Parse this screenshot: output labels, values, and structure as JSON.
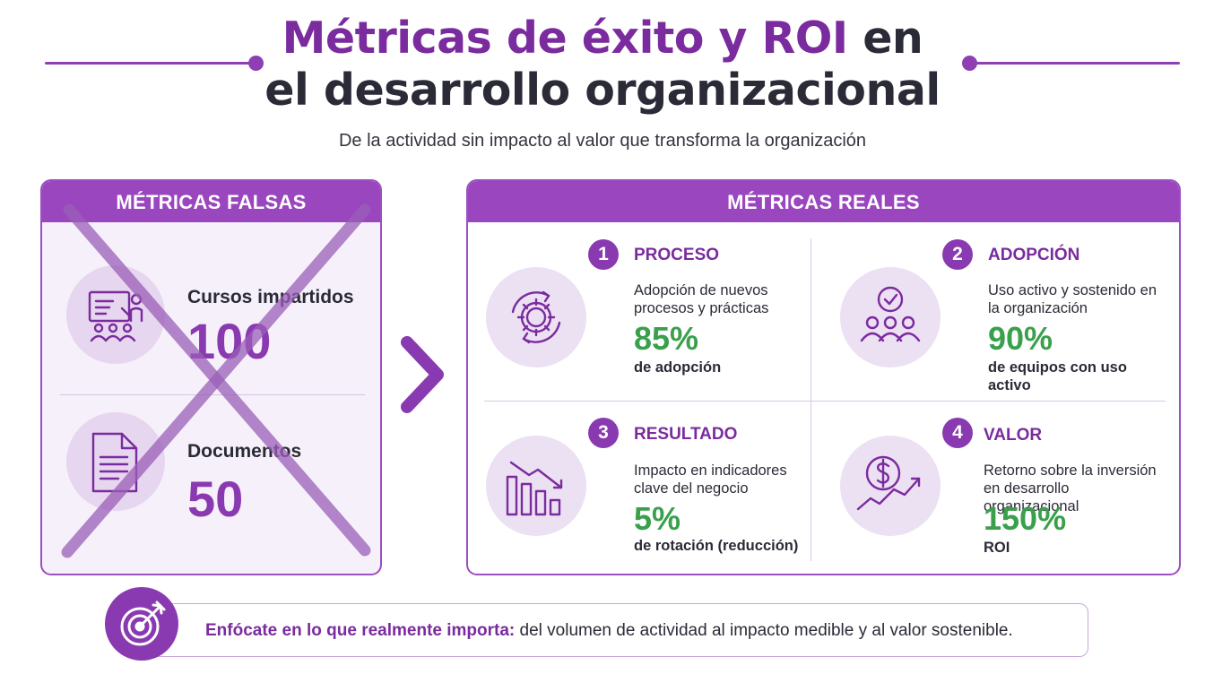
{
  "header": {
    "title_part1": "Métricas de éxito y ROI",
    "title_part2": "en",
    "title_line2": "el desarrollo organizacional",
    "subtitle": "De la actividad sin impacto al valor que transforma la organización"
  },
  "fake_metrics": {
    "heading": "MÉTRICAS FALSAS",
    "items": [
      {
        "label": "Cursos impartidos",
        "value": "100",
        "icon": "presentation-icon"
      },
      {
        "label": "Documentos",
        "value": "50",
        "icon": "document-icon"
      }
    ]
  },
  "real_metrics": {
    "heading": "MÉTRICAS REALES",
    "items": [
      {
        "number": "1",
        "title": "PROCESO",
        "description": "Adopción de nuevos procesos y prácticas",
        "value": "85%",
        "unit": "de adopción",
        "icon": "gear-cycle-icon"
      },
      {
        "number": "2",
        "title": "ADOPCIÓN",
        "description": "Uso activo y sostenido en la organización",
        "value": "90%",
        "unit": "de equipos con uso activo",
        "icon": "team-check-icon"
      },
      {
        "number": "3",
        "title": "RESULTADO",
        "description": "Impacto en indicadores clave del negocio",
        "value": "5%",
        "unit": "de rotación (reducción)",
        "icon": "declining-bars-icon"
      },
      {
        "number": "4",
        "title": "VALOR",
        "description": "Retorno sobre la inversión en desarrollo organizacional",
        "value": "150%",
        "unit": "ROI",
        "icon": "dollar-growth-icon"
      }
    ]
  },
  "banner": {
    "strong": "Enfócate en lo que realmente importa:",
    "text": " del volumen de actividad al impacto medible y al valor sostenible.",
    "icon": "target-icon"
  },
  "colors": {
    "purple": "#8a3ab1",
    "purple_header": "#9a46bf",
    "green": "#3aa04c",
    "dark": "#2b2b38"
  }
}
